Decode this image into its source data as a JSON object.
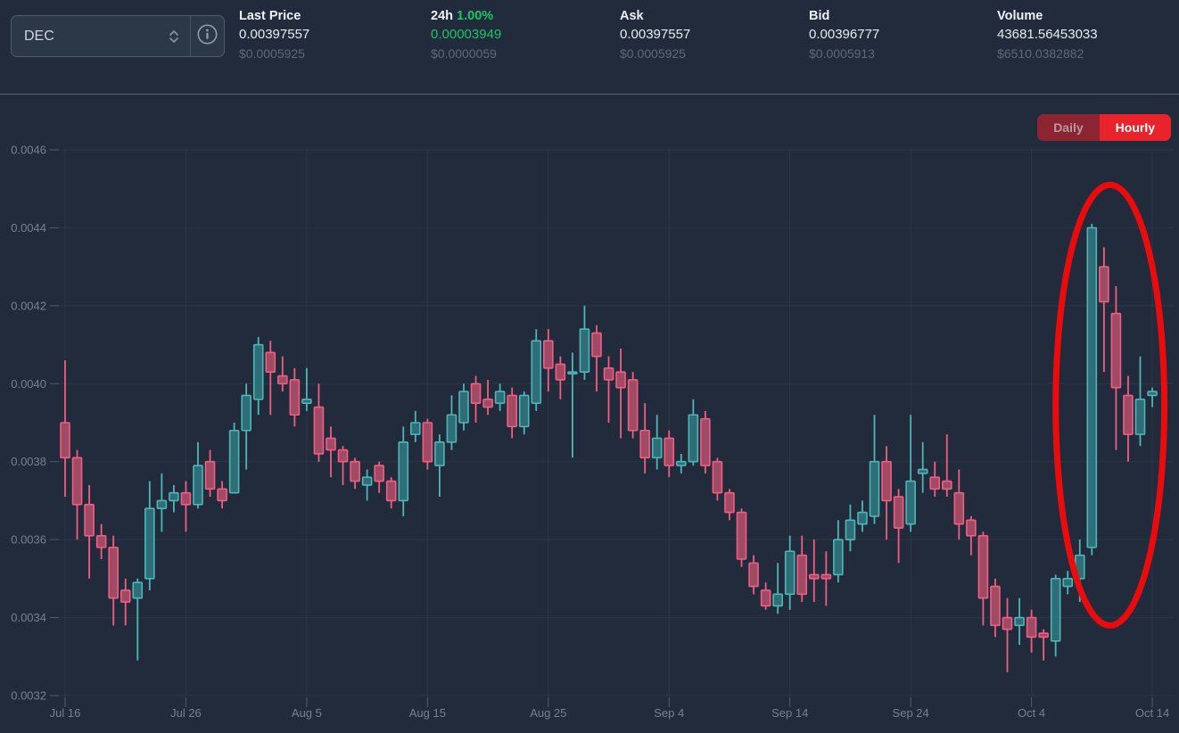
{
  "header": {
    "pair_selector": {
      "value": "DEC"
    },
    "stats": [
      {
        "label": "Last Price",
        "value": "0.00397557",
        "sub": "$0.0005925"
      },
      {
        "label": "24h",
        "change_pct": "1.00%",
        "value": "0.00003949",
        "sub": "$0.0000059"
      },
      {
        "label": "Ask",
        "value": "0.00397557",
        "sub": "$0.0005925"
      },
      {
        "label": "Bid",
        "value": "0.00396777",
        "sub": "$0.0005913"
      },
      {
        "label": "Volume",
        "value": "43681.56453033",
        "sub": "$6510.0382882"
      }
    ]
  },
  "toolbar": {
    "daily_label": "Daily",
    "hourly_label": "Hourly",
    "active": "Hourly"
  },
  "colors": {
    "background": "#212b3b",
    "green": "#1dc567",
    "accent_red": "#e8232b",
    "daily_inactive_bg": "#8c2531",
    "up_stroke": "#4eb5b9",
    "up_fill": "#2e6e77",
    "down_stroke": "#ef5f82",
    "down_fill": "#a04a66",
    "axis_text": "#76808f",
    "annotation": "#ea0c0c"
  },
  "chart_data": {
    "type": "candlestick",
    "title": "DEC price candlestick chart (Hourly view shown over ~3 months)",
    "y_axis": {
      "min": 0.0032,
      "max": 0.0046,
      "step": 0.0002,
      "tick_labels": [
        "0.0046",
        "0.0044",
        "0.0042",
        "0.0040",
        "0.0038",
        "0.0036",
        "0.0034",
        "0.0032"
      ]
    },
    "x_axis": {
      "tick_labels": [
        "Jul 16",
        "Jul 26",
        "Aug 5",
        "Aug 15",
        "Aug 25",
        "Sep 4",
        "Sep 14",
        "Sep 24",
        "Oct 4",
        "Oct 14"
      ],
      "tick_interval_candles": 10
    },
    "grid": true,
    "candles": [
      {
        "d": "Jul 16",
        "o": 0.0039,
        "h": 0.00406,
        "l": 0.00371,
        "c": 0.00381
      },
      {
        "d": "Jul 17",
        "o": 0.00381,
        "h": 0.00383,
        "l": 0.0036,
        "c": 0.00369
      },
      {
        "d": "Jul 18",
        "o": 0.00369,
        "h": 0.00374,
        "l": 0.0035,
        "c": 0.00361
      },
      {
        "d": "Jul 19",
        "o": 0.00361,
        "h": 0.00364,
        "l": 0.00355,
        "c": 0.00358
      },
      {
        "d": "Jul 20",
        "o": 0.00358,
        "h": 0.00361,
        "l": 0.00338,
        "c": 0.00345
      },
      {
        "d": "Jul 21",
        "o": 0.00347,
        "h": 0.0035,
        "l": 0.00338,
        "c": 0.00344
      },
      {
        "d": "Jul 22",
        "o": 0.00345,
        "h": 0.0035,
        "l": 0.00329,
        "c": 0.00349
      },
      {
        "d": "Jul 23",
        "o": 0.0035,
        "h": 0.00375,
        "l": 0.00347,
        "c": 0.00368
      },
      {
        "d": "Jul 24",
        "o": 0.00368,
        "h": 0.00377,
        "l": 0.00362,
        "c": 0.0037
      },
      {
        "d": "Jul 25",
        "o": 0.0037,
        "h": 0.00374,
        "l": 0.00367,
        "c": 0.00372
      },
      {
        "d": "Jul 26",
        "o": 0.00372,
        "h": 0.00375,
        "l": 0.00362,
        "c": 0.00369
      },
      {
        "d": "Jul 27",
        "o": 0.00369,
        "h": 0.00385,
        "l": 0.00368,
        "c": 0.00379
      },
      {
        "d": "Jul 28",
        "o": 0.0038,
        "h": 0.00383,
        "l": 0.00371,
        "c": 0.00373
      },
      {
        "d": "Jul 29",
        "o": 0.00373,
        "h": 0.00375,
        "l": 0.00368,
        "c": 0.0037
      },
      {
        "d": "Jul 30",
        "o": 0.00372,
        "h": 0.0039,
        "l": 0.00372,
        "c": 0.00388
      },
      {
        "d": "Jul 31",
        "o": 0.00388,
        "h": 0.004,
        "l": 0.00378,
        "c": 0.00397
      },
      {
        "d": "Aug 1",
        "o": 0.00396,
        "h": 0.00412,
        "l": 0.00392,
        "c": 0.0041
      },
      {
        "d": "Aug 2",
        "o": 0.00408,
        "h": 0.00411,
        "l": 0.00392,
        "c": 0.00403
      },
      {
        "d": "Aug 3",
        "o": 0.00402,
        "h": 0.00407,
        "l": 0.00398,
        "c": 0.004
      },
      {
        "d": "Aug 4",
        "o": 0.00401,
        "h": 0.00404,
        "l": 0.00389,
        "c": 0.00392
      },
      {
        "d": "Aug 5",
        "o": 0.00395,
        "h": 0.00404,
        "l": 0.00393,
        "c": 0.00396
      },
      {
        "d": "Aug 6",
        "o": 0.00394,
        "h": 0.004,
        "l": 0.0038,
        "c": 0.00382
      },
      {
        "d": "Aug 7",
        "o": 0.00386,
        "h": 0.00389,
        "l": 0.00376,
        "c": 0.00383
      },
      {
        "d": "Aug 8",
        "o": 0.00383,
        "h": 0.00384,
        "l": 0.00374,
        "c": 0.0038
      },
      {
        "d": "Aug 9",
        "o": 0.0038,
        "h": 0.00381,
        "l": 0.00373,
        "c": 0.00375
      },
      {
        "d": "Aug 10",
        "o": 0.00374,
        "h": 0.00378,
        "l": 0.0037,
        "c": 0.00376
      },
      {
        "d": "Aug 11",
        "o": 0.00379,
        "h": 0.0038,
        "l": 0.00372,
        "c": 0.00375
      },
      {
        "d": "Aug 12",
        "o": 0.00375,
        "h": 0.00376,
        "l": 0.00368,
        "c": 0.0037
      },
      {
        "d": "Aug 13",
        "o": 0.0037,
        "h": 0.00389,
        "l": 0.00366,
        "c": 0.00385
      },
      {
        "d": "Aug 14",
        "o": 0.00387,
        "h": 0.00393,
        "l": 0.00385,
        "c": 0.0039
      },
      {
        "d": "Aug 15",
        "o": 0.0039,
        "h": 0.00391,
        "l": 0.00378,
        "c": 0.0038
      },
      {
        "d": "Aug 16",
        "o": 0.00379,
        "h": 0.00387,
        "l": 0.00371,
        "c": 0.00385
      },
      {
        "d": "Aug 17",
        "o": 0.00385,
        "h": 0.00397,
        "l": 0.00383,
        "c": 0.00392
      },
      {
        "d": "Aug 18",
        "o": 0.0039,
        "h": 0.004,
        "l": 0.00388,
        "c": 0.00398
      },
      {
        "d": "Aug 19",
        "o": 0.004,
        "h": 0.00402,
        "l": 0.0039,
        "c": 0.00395
      },
      {
        "d": "Aug 20",
        "o": 0.00396,
        "h": 0.00401,
        "l": 0.00392,
        "c": 0.00394
      },
      {
        "d": "Aug 21",
        "o": 0.00395,
        "h": 0.004,
        "l": 0.00393,
        "c": 0.00398
      },
      {
        "d": "Aug 22",
        "o": 0.00397,
        "h": 0.00399,
        "l": 0.00386,
        "c": 0.00389
      },
      {
        "d": "Aug 23",
        "o": 0.00389,
        "h": 0.00398,
        "l": 0.00387,
        "c": 0.00397
      },
      {
        "d": "Aug 24",
        "o": 0.00395,
        "h": 0.00414,
        "l": 0.00393,
        "c": 0.00411
      },
      {
        "d": "Aug 25",
        "o": 0.00411,
        "h": 0.00414,
        "l": 0.00398,
        "c": 0.00404
      },
      {
        "d": "Aug 26",
        "o": 0.00405,
        "h": 0.00407,
        "l": 0.00396,
        "c": 0.00401
      },
      {
        "d": "Aug 27",
        "o": 0.00403,
        "h": 0.00408,
        "l": 0.00381,
        "c": 0.00403
      },
      {
        "d": "Aug 28",
        "o": 0.00403,
        "h": 0.0042,
        "l": 0.00401,
        "c": 0.00414
      },
      {
        "d": "Aug 29",
        "o": 0.00413,
        "h": 0.00415,
        "l": 0.00398,
        "c": 0.00407
      },
      {
        "d": "Aug 30",
        "o": 0.00404,
        "h": 0.00407,
        "l": 0.0039,
        "c": 0.00401
      },
      {
        "d": "Aug 31",
        "o": 0.00403,
        "h": 0.00409,
        "l": 0.00386,
        "c": 0.00399
      },
      {
        "d": "Sep 1",
        "o": 0.00401,
        "h": 0.00403,
        "l": 0.00386,
        "c": 0.00388
      },
      {
        "d": "Sep 2",
        "o": 0.00388,
        "h": 0.00395,
        "l": 0.00377,
        "c": 0.00381
      },
      {
        "d": "Sep 3",
        "o": 0.00381,
        "h": 0.00392,
        "l": 0.00378,
        "c": 0.00386
      },
      {
        "d": "Sep 4",
        "o": 0.00386,
        "h": 0.00388,
        "l": 0.00376,
        "c": 0.00379
      },
      {
        "d": "Sep 5",
        "o": 0.00379,
        "h": 0.00382,
        "l": 0.00377,
        "c": 0.0038
      },
      {
        "d": "Sep 6",
        "o": 0.0038,
        "h": 0.00396,
        "l": 0.00379,
        "c": 0.00392
      },
      {
        "d": "Sep 7",
        "o": 0.00391,
        "h": 0.00393,
        "l": 0.00377,
        "c": 0.00379
      },
      {
        "d": "Sep 8",
        "o": 0.0038,
        "h": 0.00381,
        "l": 0.0037,
        "c": 0.00372
      },
      {
        "d": "Sep 9",
        "o": 0.00372,
        "h": 0.00373,
        "l": 0.00365,
        "c": 0.00367
      },
      {
        "d": "Sep 10",
        "o": 0.00367,
        "h": 0.00368,
        "l": 0.00353,
        "c": 0.00355
      },
      {
        "d": "Sep 11",
        "o": 0.00354,
        "h": 0.00356,
        "l": 0.00346,
        "c": 0.00348
      },
      {
        "d": "Sep 12",
        "o": 0.00347,
        "h": 0.00349,
        "l": 0.00342,
        "c": 0.00343
      },
      {
        "d": "Sep 13",
        "o": 0.00343,
        "h": 0.00354,
        "l": 0.00341,
        "c": 0.00346
      },
      {
        "d": "Sep 14",
        "o": 0.00346,
        "h": 0.00361,
        "l": 0.00342,
        "c": 0.00357
      },
      {
        "d": "Sep 15",
        "o": 0.00356,
        "h": 0.00361,
        "l": 0.00344,
        "c": 0.00346
      },
      {
        "d": "Sep 16",
        "o": 0.00351,
        "h": 0.0036,
        "l": 0.00344,
        "c": 0.0035
      },
      {
        "d": "Sep 17",
        "o": 0.00351,
        "h": 0.00357,
        "l": 0.00343,
        "c": 0.0035
      },
      {
        "d": "Sep 18",
        "o": 0.00351,
        "h": 0.00365,
        "l": 0.00349,
        "c": 0.0036
      },
      {
        "d": "Sep 19",
        "o": 0.0036,
        "h": 0.00369,
        "l": 0.00357,
        "c": 0.00365
      },
      {
        "d": "Sep 20",
        "o": 0.00364,
        "h": 0.0037,
        "l": 0.00362,
        "c": 0.00367
      },
      {
        "d": "Sep 21",
        "o": 0.00366,
        "h": 0.00392,
        "l": 0.00364,
        "c": 0.0038
      },
      {
        "d": "Sep 22",
        "o": 0.0038,
        "h": 0.00384,
        "l": 0.0036,
        "c": 0.0037
      },
      {
        "d": "Sep 23",
        "o": 0.00371,
        "h": 0.00373,
        "l": 0.00354,
        "c": 0.00363
      },
      {
        "d": "Sep 24",
        "o": 0.00364,
        "h": 0.00392,
        "l": 0.00362,
        "c": 0.00375
      },
      {
        "d": "Sep 25",
        "o": 0.00377,
        "h": 0.00385,
        "l": 0.00372,
        "c": 0.00378
      },
      {
        "d": "Sep 26",
        "o": 0.00376,
        "h": 0.0038,
        "l": 0.00371,
        "c": 0.00373
      },
      {
        "d": "Sep 27",
        "o": 0.00375,
        "h": 0.00387,
        "l": 0.00371,
        "c": 0.00373
      },
      {
        "d": "Sep 28",
        "o": 0.00372,
        "h": 0.00378,
        "l": 0.0036,
        "c": 0.00364
      },
      {
        "d": "Sep 29",
        "o": 0.00365,
        "h": 0.00366,
        "l": 0.00356,
        "c": 0.00361
      },
      {
        "d": "Sep 30",
        "o": 0.00361,
        "h": 0.00362,
        "l": 0.00338,
        "c": 0.00345
      },
      {
        "d": "Oct 1",
        "o": 0.00348,
        "h": 0.0035,
        "l": 0.00335,
        "c": 0.00338
      },
      {
        "d": "Oct 2",
        "o": 0.0034,
        "h": 0.00345,
        "l": 0.00326,
        "c": 0.00337
      },
      {
        "d": "Oct 3",
        "o": 0.00338,
        "h": 0.00345,
        "l": 0.00333,
        "c": 0.0034
      },
      {
        "d": "Oct 4",
        "o": 0.0034,
        "h": 0.00342,
        "l": 0.00331,
        "c": 0.00335
      },
      {
        "d": "Oct 5",
        "o": 0.00336,
        "h": 0.00337,
        "l": 0.00329,
        "c": 0.00335
      },
      {
        "d": "Oct 6",
        "o": 0.00334,
        "h": 0.00351,
        "l": 0.0033,
        "c": 0.0035
      },
      {
        "d": "Oct 7",
        "o": 0.00348,
        "h": 0.00352,
        "l": 0.00346,
        "c": 0.0035
      },
      {
        "d": "Oct 8",
        "o": 0.0035,
        "h": 0.0036,
        "l": 0.00344,
        "c": 0.00356
      },
      {
        "d": "Oct 9",
        "o": 0.00358,
        "h": 0.00441,
        "l": 0.00356,
        "c": 0.0044
      },
      {
        "d": "Oct 10",
        "o": 0.0043,
        "h": 0.00435,
        "l": 0.00403,
        "c": 0.00421
      },
      {
        "d": "Oct 11",
        "o": 0.00418,
        "h": 0.00425,
        "l": 0.00383,
        "c": 0.00399
      },
      {
        "d": "Oct 12",
        "o": 0.00397,
        "h": 0.00402,
        "l": 0.0038,
        "c": 0.00387
      },
      {
        "d": "Oct 13",
        "o": 0.00387,
        "h": 0.00407,
        "l": 0.00384,
        "c": 0.00396
      },
      {
        "d": "Oct 14",
        "o": 0.00397,
        "h": 0.00399,
        "l": 0.00394,
        "c": 0.00398
      }
    ],
    "annotation": {
      "type": "ellipse",
      "color": "#ea0c0c",
      "stroke_width": 7,
      "candle_from": 82,
      "candle_to": 91,
      "value_top": 0.00451,
      "value_bottom": 0.00338,
      "meaning": "hand-drawn red circle highlighting the Oct 6-14 price spike"
    }
  }
}
